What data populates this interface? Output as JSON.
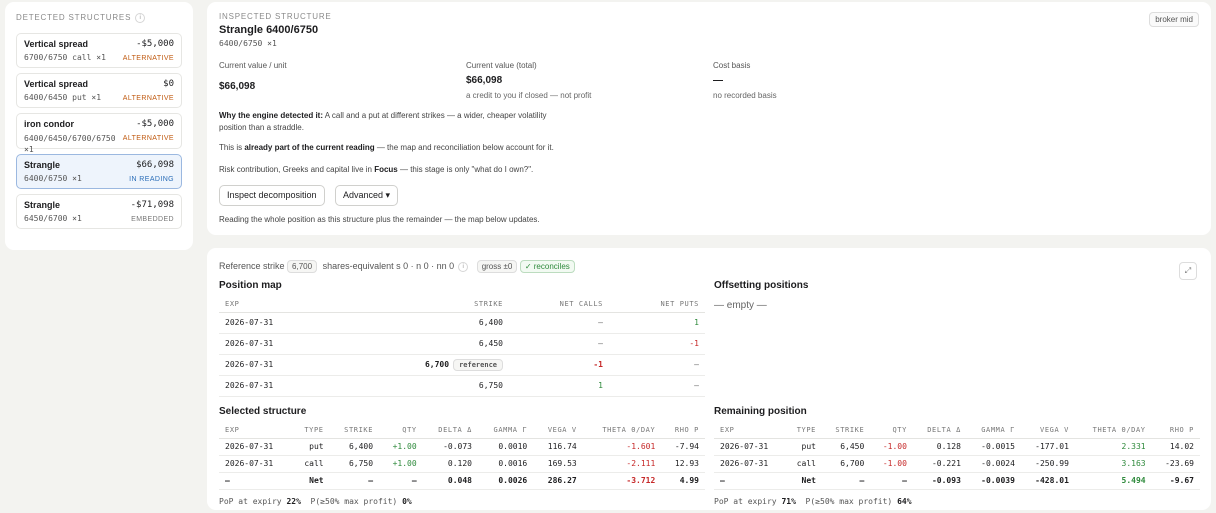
{
  "left": {
    "title": "DETECTED STRUCTURES",
    "info": "i",
    "items": [
      {
        "name": "Vertical spread",
        "value": "-$5,000",
        "legs": "6700/6750 call ×1",
        "tag": "ALTERNATIVE"
      },
      {
        "name": "Vertical spread",
        "value": "$0",
        "legs": "6400/6450 put ×1",
        "tag": "ALTERNATIVE"
      },
      {
        "name": "iron condor",
        "value": "-$5,000",
        "legs": "6400/6450/6700/6750 ×1",
        "tag": "ALTERNATIVE"
      },
      {
        "name": "Strangle",
        "value": "$66,098",
        "legs": "6400/6750 ×1",
        "tag": "IN READING"
      },
      {
        "name": "Strangle",
        "value": "-$71,098",
        "legs": "6450/6700 ×1",
        "tag": "EMBEDDED"
      }
    ]
  },
  "inspected": {
    "label": "INSPECTED STRUCTURE",
    "title": "Strangle 6400/6750",
    "subtitle": "6400/6750 ×1",
    "broker": "broker mid",
    "metrics": [
      {
        "label": "Current value / unit",
        "value": "$66,098",
        "sub": ""
      },
      {
        "label": "Current value (total)",
        "value": "$66,098",
        "sub": "a credit to you if closed — not profit"
      },
      {
        "label": "Cost basis",
        "value": "—",
        "sub": "no recorded basis"
      }
    ],
    "why_bold": "Why the engine detected it:",
    "why_text": " A call and a put at different strikes — a wider, cheaper volatility position than a straddle.",
    "part_pre": "This is ",
    "part_bold": "already part of the current reading",
    "part_post": " — the map and reconciliation below account for it.",
    "risk_pre": "Risk contribution, Greeks and capital live in ",
    "risk_bold": "Focus",
    "risk_post": " — this stage is only \"what do I own?\".",
    "btn_inspect": "Inspect decomposition",
    "btn_advanced": "Advanced ▾",
    "reading": "Reading the whole position as this structure plus the remainder — the map below updates."
  },
  "lower": {
    "ref_label": "Reference strike",
    "ref_value": "6,700",
    "shares_eq": "shares-equivalent s 0 · n 0 · nn 0",
    "info": "i",
    "gross": "gross ±0",
    "reconciles": "✓ reconciles",
    "expand": "⤢",
    "map_title": "Position map",
    "map_headers": [
      "EXP",
      "STRIKE",
      "NET CALLS",
      "NET PUTS"
    ],
    "map_rows": [
      {
        "exp": "2026-07-31",
        "strike": "6,400",
        "calls": "–",
        "puts": "1"
      },
      {
        "exp": "2026-07-31",
        "strike": "6,450",
        "calls": "–",
        "puts": "-1"
      },
      {
        "exp": "2026-07-31",
        "strike": "6,700",
        "ref": "reference",
        "calls": "-1",
        "puts": "–"
      },
      {
        "exp": "2026-07-31",
        "strike": "6,750",
        "calls": "1",
        "puts": "–"
      }
    ],
    "offset_title": "Offsetting positions",
    "offset_empty": "— empty —",
    "greek_headers": [
      "EXP",
      "TYPE",
      "STRIKE",
      "QTY",
      "DELTA Δ",
      "GAMMA Γ",
      "VEGA V",
      "THETA Θ/DAY",
      "RHO P"
    ],
    "selected": {
      "title": "Selected structure",
      "rows": [
        [
          "2026-07-31",
          "put",
          "6,400",
          "+1.00",
          "-0.073",
          "0.0010",
          "116.74",
          "-1.601",
          "-7.94"
        ],
        [
          "2026-07-31",
          "call",
          "6,750",
          "+1.00",
          "0.120",
          "0.0016",
          "169.53",
          "-2.111",
          "12.93"
        ],
        [
          "–",
          "Net",
          "–",
          "–",
          "0.048",
          "0.0026",
          "286.27",
          "-3.712",
          "4.99"
        ]
      ],
      "pop_label": "PoP at expiry",
      "pop": "22%",
      "p50_label": "P(≥50% max profit)",
      "p50": "0%"
    },
    "remaining": {
      "title": "Remaining position",
      "rows": [
        [
          "2026-07-31",
          "put",
          "6,450",
          "-1.00",
          "0.128",
          "-0.0015",
          "-177.01",
          "2.331",
          "14.02"
        ],
        [
          "2026-07-31",
          "call",
          "6,700",
          "-1.00",
          "-0.221",
          "-0.0024",
          "-250.99",
          "3.163",
          "-23.69"
        ],
        [
          "–",
          "Net",
          "–",
          "–",
          "-0.093",
          "-0.0039",
          "-428.01",
          "5.494",
          "-9.67"
        ]
      ],
      "pop_label": "PoP at expiry",
      "pop": "71%",
      "p50_label": "P(≥50% max profit)",
      "p50": "64%"
    }
  }
}
